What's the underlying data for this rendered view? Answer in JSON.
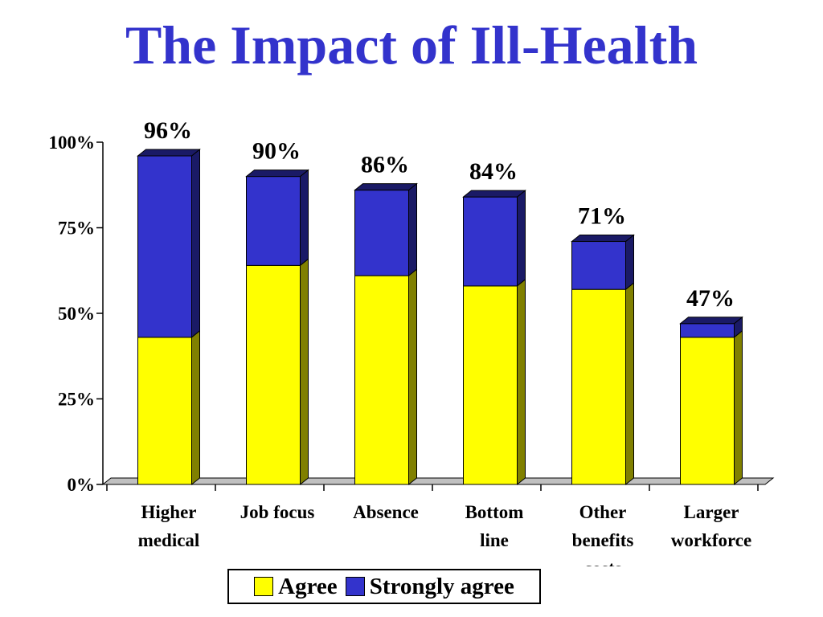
{
  "title": "The Impact of Ill-Health",
  "chart_data": {
    "type": "bar",
    "stacked": true,
    "categories": [
      [
        "Higher",
        "medical"
      ],
      [
        "Job focus"
      ],
      [
        "Absence"
      ],
      [
        "Bottom",
        "line"
      ],
      [
        "Other",
        "benefits",
        "costs"
      ],
      [
        "Larger",
        "workforce"
      ]
    ],
    "series": [
      {
        "name": "Agree",
        "color": "#ffff00",
        "side_color": "#808000",
        "values": [
          43,
          64,
          61,
          58,
          57,
          43
        ]
      },
      {
        "name": "Strongly agree",
        "color": "#3333cc",
        "side_color": "#1a1a66",
        "values": [
          53,
          26,
          25,
          26,
          14,
          4
        ]
      }
    ],
    "totals": [
      "96%",
      "90%",
      "86%",
      "84%",
      "71%",
      "47%"
    ],
    "y_ticks": [
      {
        "value": 0,
        "label": "0%"
      },
      {
        "value": 25,
        "label": "25%"
      },
      {
        "value": 50,
        "label": "50%"
      },
      {
        "value": 75,
        "label": "75%"
      },
      {
        "value": 100,
        "label": "100%"
      }
    ],
    "ylim": [
      0,
      100
    ],
    "grid": false,
    "legend_position": "bottom",
    "bar_style": "3d"
  }
}
